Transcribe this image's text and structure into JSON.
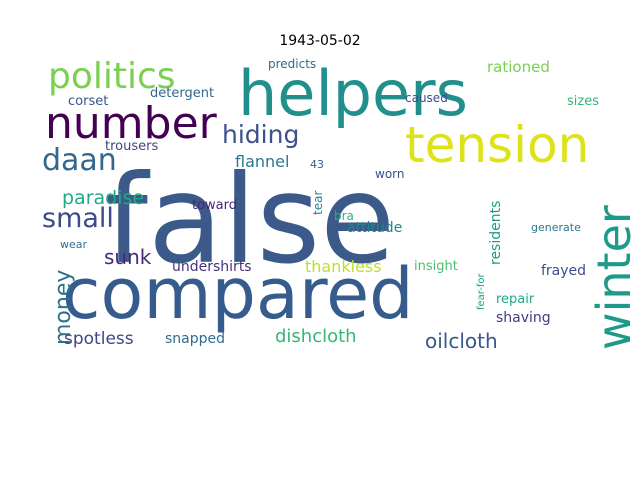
{
  "chart_data": {
    "type": "wordcloud",
    "title": "1943-05-02",
    "colormap": "viridis",
    "background": "#ffffff",
    "words": [
      {
        "text": "false",
        "size": 1.0,
        "color": "#3b5a8a"
      },
      {
        "text": "compared",
        "size": 0.62,
        "color": "#365c8d"
      },
      {
        "text": "helpers",
        "size": 0.55,
        "color": "#21908d"
      },
      {
        "text": "tension",
        "size": 0.44,
        "color": "#dde318"
      },
      {
        "text": "winter",
        "size": 0.42,
        "color": "#1f9a8a"
      },
      {
        "text": "number",
        "size": 0.37,
        "color": "#440154"
      },
      {
        "text": "politics",
        "size": 0.32,
        "color": "#7ad151"
      },
      {
        "text": "daan",
        "size": 0.26,
        "color": "#31688e"
      },
      {
        "text": "small",
        "size": 0.24,
        "color": "#3e4989"
      },
      {
        "text": "hiding",
        "size": 0.22,
        "color": "#3b528b"
      },
      {
        "text": "money",
        "size": 0.2,
        "color": "#2c728e"
      },
      {
        "text": "paradise",
        "size": 0.17,
        "color": "#22a884"
      },
      {
        "text": "sunk",
        "size": 0.17,
        "color": "#482878"
      },
      {
        "text": "oilcloth",
        "size": 0.17,
        "color": "#38598c"
      },
      {
        "text": "dishcloth",
        "size": 0.16,
        "color": "#35b779"
      },
      {
        "text": "spotless",
        "size": 0.15,
        "color": "#414487"
      },
      {
        "text": "flannel",
        "size": 0.14,
        "color": "#2a788e"
      },
      {
        "text": "thankless",
        "size": 0.14,
        "color": "#bddf26"
      },
      {
        "text": "rationed",
        "size": 0.13,
        "color": "#7ad151"
      },
      {
        "text": "snapped",
        "size": 0.12,
        "color": "#2f6c8e"
      },
      {
        "text": "undershirts",
        "size": 0.12,
        "color": "#46327e"
      },
      {
        "text": "frayed",
        "size": 0.12,
        "color": "#3e4c8a"
      },
      {
        "text": "shaving",
        "size": 0.12,
        "color": "#443a83"
      },
      {
        "text": "attitude",
        "size": 0.12,
        "color": "#26828e"
      },
      {
        "text": "residents",
        "size": 0.12,
        "color": "#1e9c89"
      },
      {
        "text": "repair",
        "size": 0.12,
        "color": "#22a884"
      },
      {
        "text": "corset",
        "size": 0.11,
        "color": "#3b528b"
      },
      {
        "text": "detergent",
        "size": 0.11,
        "color": "#31688e"
      },
      {
        "text": "trousers",
        "size": 0.11,
        "color": "#404387"
      },
      {
        "text": "toward",
        "size": 0.11,
        "color": "#482475"
      },
      {
        "text": "insight",
        "size": 0.11,
        "color": "#4ac16d"
      },
      {
        "text": "predicts",
        "size": 0.1,
        "color": "#306a8e"
      },
      {
        "text": "caused",
        "size": 0.1,
        "color": "#3d4d8a"
      },
      {
        "text": "sizes",
        "size": 0.1,
        "color": "#35b779"
      },
      {
        "text": "worn",
        "size": 0.1,
        "color": "#3b528b"
      },
      {
        "text": "generate",
        "size": 0.09,
        "color": "#2a788e"
      },
      {
        "text": "bra",
        "size": 0.1,
        "color": "#29af7f"
      },
      {
        "text": "tear",
        "size": 0.1,
        "color": "#25858e"
      },
      {
        "text": "wear",
        "size": 0.09,
        "color": "#2c728e"
      },
      {
        "text": "43",
        "size": 0.09,
        "color": "#355f8d"
      },
      {
        "text": "fear-for",
        "size": 0.08,
        "color": "#1fa088"
      }
    ]
  }
}
